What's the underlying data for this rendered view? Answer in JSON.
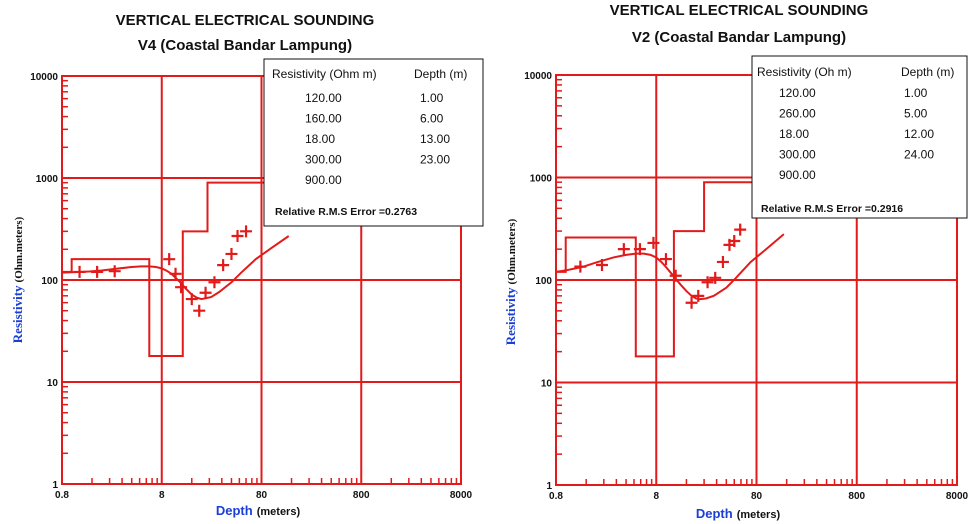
{
  "chart_data": [
    {
      "type": "line",
      "title": "VERTICAL ELECTRICAL SOUNDING",
      "subtitle": "V4 (Coastal Bandar Lampung)",
      "xlabel": "Depth",
      "xunit": "(meters)",
      "ylabel": "Resistivity",
      "yunit": "(Ohm.meters)",
      "x_scale": "log",
      "y_scale": "log",
      "xlim": [
        0.8,
        8000
      ],
      "ylim": [
        1,
        10000
      ],
      "x_ticks": [
        "0.8",
        "8",
        "80",
        "800",
        "8000"
      ],
      "y_ticks": [
        "1",
        "10",
        "100",
        "1000",
        "10000"
      ],
      "grid": true,
      "color": "#e31a1a",
      "table": {
        "headers": [
          "Resistivity (Ohm m)",
          "Depth (m)"
        ],
        "rows": [
          [
            "120.00",
            "1.00"
          ],
          [
            "160.00",
            "6.00"
          ],
          [
            "18.00",
            "13.00"
          ],
          [
            "300.00",
            "23.00"
          ],
          [
            "900.00",
            ""
          ]
        ],
        "rms": "Relative R.M.S Error =0.2763"
      },
      "model": {
        "resistivities": [
          120,
          160,
          18,
          300,
          900
        ],
        "depths": [
          1,
          6,
          13,
          23
        ]
      },
      "observed": {
        "x": [
          1.2,
          1.8,
          2.7,
          9.5,
          11,
          12.5,
          16,
          19,
          22,
          27,
          33,
          40,
          46,
          56
        ],
        "y": [
          120,
          120,
          122,
          160,
          115,
          85,
          65,
          50,
          75,
          95,
          140,
          180,
          270,
          300
        ]
      },
      "calculated": {
        "x": [
          0.8,
          1,
          1.5,
          2,
          3,
          4,
          5,
          6,
          7,
          8,
          9,
          10,
          12,
          14,
          16,
          18,
          20,
          25,
          30,
          40,
          50,
          70,
          100,
          150
        ],
        "y": [
          118,
          119,
          121,
          124,
          130,
          134,
          136,
          136,
          134,
          130,
          123,
          115,
          97,
          82,
          72,
          67,
          65,
          68,
          76,
          95,
          118,
          160,
          205,
          270
        ]
      }
    },
    {
      "type": "line",
      "title": "VERTICAL ELECTRICAL SOUNDING",
      "subtitle": "V2 (Coastal Bandar Lampung)",
      "xlabel": "Depth",
      "xunit": "(meters)",
      "ylabel": "Resistivity",
      "yunit": "(Ohm.meters)",
      "x_scale": "log",
      "y_scale": "log",
      "xlim": [
        0.8,
        8000
      ],
      "ylim": [
        1,
        10000
      ],
      "x_ticks": [
        "0.8",
        "8",
        "80",
        "800",
        "8000"
      ],
      "y_ticks": [
        "1",
        "10",
        "100",
        "1000",
        "10000"
      ],
      "grid": true,
      "color": "#e31a1a",
      "table": {
        "headers": [
          "Resistivity (Oh m)",
          "Depth (m)"
        ],
        "rows": [
          [
            "120.00",
            "1.00"
          ],
          [
            "260.00",
            "5.00"
          ],
          [
            "18.00",
            "12.00"
          ],
          [
            "300.00",
            "24.00"
          ],
          [
            "900.00",
            ""
          ]
        ],
        "rms": "Relative R.M.S Error =0.2916"
      },
      "model": {
        "resistivities": [
          120,
          260,
          18,
          300,
          900
        ],
        "depths": [
          1,
          5,
          12,
          24
        ]
      },
      "observed": {
        "x": [
          1.4,
          2.3,
          3.8,
          5.5,
          7.5,
          10,
          12.5,
          18,
          21,
          26,
          31,
          37,
          43,
          48,
          55
        ],
        "y": [
          135,
          140,
          200,
          200,
          230,
          160,
          110,
          60,
          70,
          95,
          105,
          150,
          220,
          240,
          310
        ]
      },
      "calculated": {
        "x": [
          0.8,
          1,
          1.5,
          2,
          3,
          4,
          5,
          6,
          7,
          8,
          9,
          10,
          12,
          14,
          16,
          18,
          20,
          22,
          25,
          30,
          40,
          50,
          70,
          100,
          150
        ],
        "y": [
          120,
          124,
          135,
          148,
          166,
          176,
          181,
          181,
          176,
          166,
          150,
          134,
          108,
          90,
          78,
          70,
          66,
          65,
          66,
          70,
          84,
          105,
          150,
          200,
          280
        ]
      }
    }
  ]
}
